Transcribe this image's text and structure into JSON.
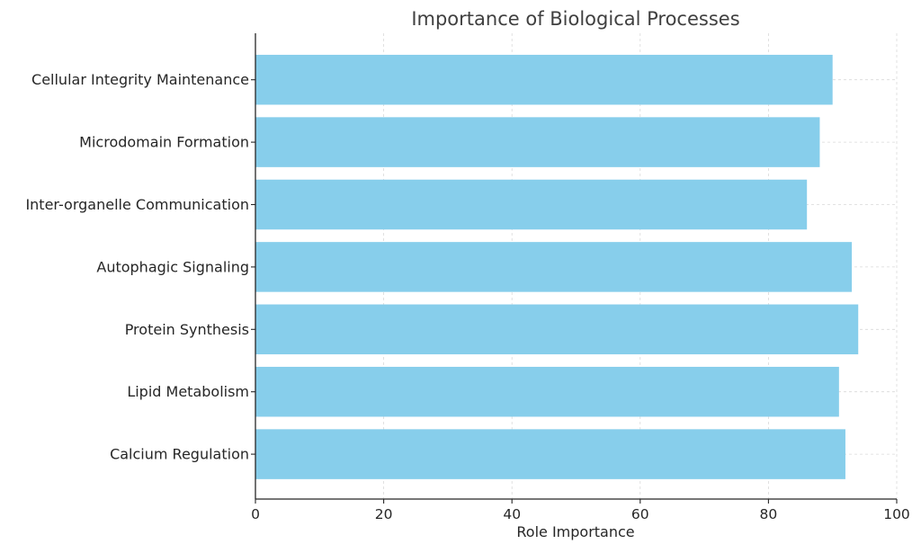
{
  "chart_data": {
    "type": "bar",
    "orientation": "horizontal",
    "title": "Importance of Biological Processes",
    "xlabel": "Role Importance",
    "ylabel": "",
    "categories": [
      "Cellular Integrity Maintenance",
      "Microdomain Formation",
      "Inter-organelle Communication",
      "Autophagic Signaling",
      "Protein Synthesis",
      "Lipid Metabolism",
      "Calcium Regulation"
    ],
    "values": [
      90,
      88,
      86,
      93,
      94,
      91,
      92
    ],
    "xlim": [
      0,
      100
    ],
    "xticks": [
      0,
      20,
      40,
      60,
      80,
      100
    ],
    "grid": true,
    "legend": "none",
    "bar_color": "#87CEEB"
  }
}
